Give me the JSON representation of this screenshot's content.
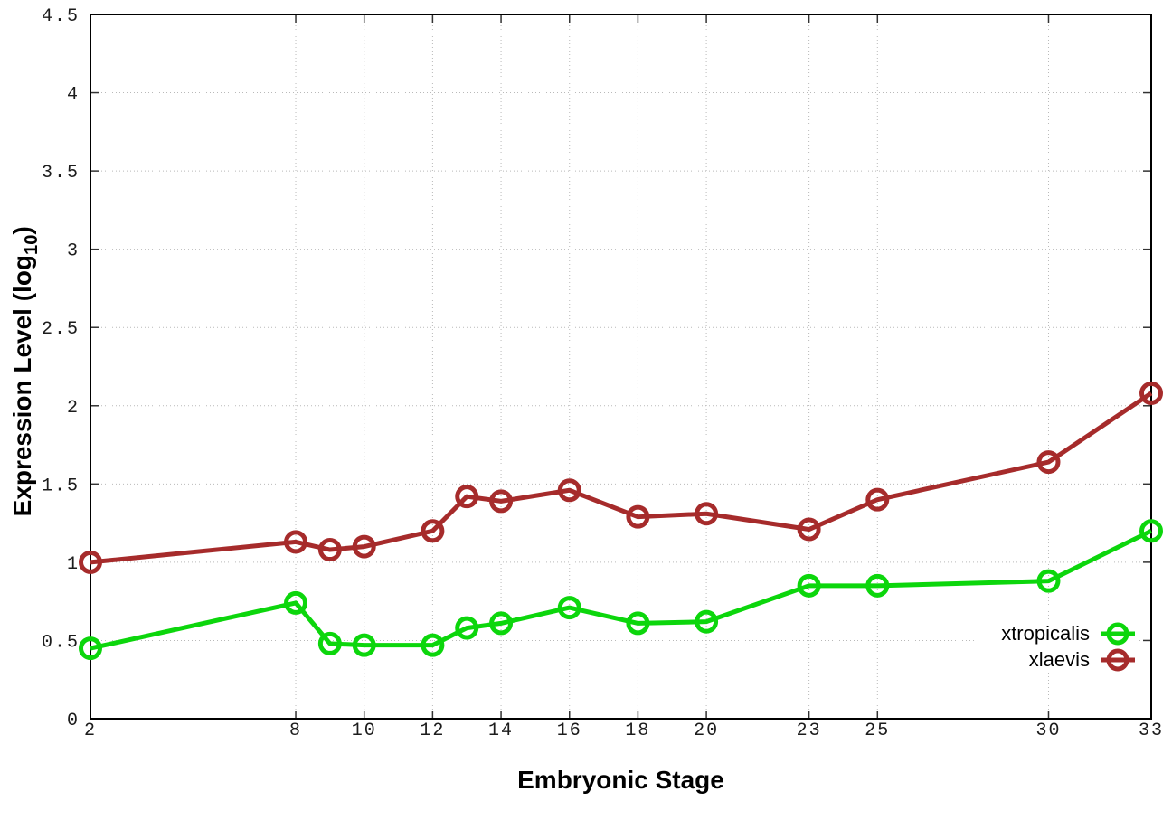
{
  "chart_data": {
    "type": "line",
    "title": "",
    "xlabel": "Embryonic Stage",
    "ylabel": "Expression Level (log10)",
    "ylabel_parts": {
      "prefix": "Expression Level (log",
      "sub": "10",
      "suffix": ")"
    },
    "x": [
      2,
      8,
      9,
      10,
      12,
      13,
      14,
      16,
      18,
      20,
      23,
      25,
      30,
      33
    ],
    "series": [
      {
        "name": "xtropicalis",
        "color": "#0cd60c",
        "values": [
          0.45,
          0.74,
          0.48,
          0.47,
          0.47,
          0.58,
          0.61,
          0.71,
          0.61,
          0.62,
          0.85,
          0.85,
          0.88,
          1.2
        ]
      },
      {
        "name": "xlaevis",
        "color": "#a62b2b",
        "values": [
          1.0,
          1.13,
          1.08,
          1.1,
          1.2,
          1.42,
          1.39,
          1.46,
          1.29,
          1.31,
          1.21,
          1.4,
          1.64,
          2.08
        ]
      }
    ],
    "xlim": [
      2,
      33
    ],
    "ylim": [
      0,
      4.5
    ],
    "xticks": [
      2,
      8,
      10,
      12,
      14,
      16,
      18,
      20,
      23,
      25,
      30,
      33
    ],
    "xtick_labels": [
      "2",
      "8",
      "10",
      "12",
      "14",
      "16",
      "18",
      "20",
      "23",
      "25",
      "30",
      "33"
    ],
    "yticks": [
      0,
      0.5,
      1,
      1.5,
      2,
      2.5,
      3,
      3.5,
      4,
      4.5
    ],
    "ytick_labels": [
      "0",
      "0.5",
      "1",
      "1.5",
      "2",
      "2.5",
      "3",
      "3.5",
      "4",
      "4.5"
    ],
    "grid": "dotted",
    "legend_position": "inside-right-lower",
    "marker": "open-circle",
    "colors": {
      "axis": "#000000",
      "tick": "#333333",
      "grid": "#b9b9b9",
      "tick_label": "#1c1c1c",
      "background": "#ffffff"
    }
  }
}
